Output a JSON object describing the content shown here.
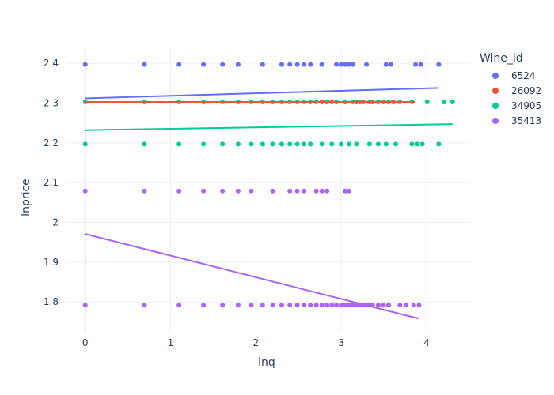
{
  "chart_data": {
    "type": "scatter",
    "xlabel": "lnq",
    "ylabel": "lnprice",
    "xlim": [
      -0.22,
      4.52
    ],
    "ylim": [
      1.725,
      2.44
    ],
    "x_ticks": [
      0,
      1,
      2,
      3,
      4
    ],
    "y_ticks": [
      1.8,
      1.9,
      2,
      2.1,
      2.2,
      2.3,
      2.4
    ],
    "grid": true,
    "legend": {
      "title": "Wine_id",
      "placement": "top-right"
    },
    "series": [
      {
        "name": "6524",
        "color": "#636efa",
        "points": [
          [
            0,
            2.397
          ],
          [
            0.693,
            2.397
          ],
          [
            1.099,
            2.397
          ],
          [
            1.386,
            2.397
          ],
          [
            1.609,
            2.397
          ],
          [
            1.792,
            2.397
          ],
          [
            2.079,
            2.397
          ],
          [
            2.303,
            2.397
          ],
          [
            2.398,
            2.397
          ],
          [
            2.485,
            2.397
          ],
          [
            2.565,
            2.397
          ],
          [
            2.639,
            2.397
          ],
          [
            2.773,
            2.397
          ],
          [
            2.944,
            2.397
          ],
          [
            3.0,
            2.397
          ],
          [
            3.045,
            2.397
          ],
          [
            3.091,
            2.397
          ],
          [
            3.135,
            2.397
          ],
          [
            3.296,
            2.397
          ],
          [
            3.526,
            2.397
          ],
          [
            3.584,
            2.397
          ],
          [
            3.871,
            2.397
          ],
          [
            3.932,
            2.397
          ],
          [
            4.143,
            2.397
          ]
        ],
        "trend": [
          [
            0,
            2.312
          ],
          [
            4.143,
            2.338
          ]
        ]
      },
      {
        "name": "26092",
        "color": "#ef553b",
        "points": [
          [
            2.773,
            2.303
          ],
          [
            2.833,
            2.303
          ],
          [
            2.89,
            2.303
          ],
          [
            3.045,
            2.303
          ],
          [
            3.178,
            2.303
          ],
          [
            3.258,
            2.303
          ],
          [
            3.367,
            2.303
          ],
          [
            3.497,
            2.303
          ],
          [
            3.611,
            2.303
          ]
        ],
        "trend": [
          [
            0,
            2.303
          ],
          [
            3.871,
            2.303
          ]
        ]
      },
      {
        "name": "34905",
        "color": "#00cc96",
        "points": [
          [
            0,
            2.303
          ],
          [
            0.693,
            2.303
          ],
          [
            1.099,
            2.303
          ],
          [
            1.386,
            2.303
          ],
          [
            1.609,
            2.303
          ],
          [
            1.792,
            2.303
          ],
          [
            1.946,
            2.303
          ],
          [
            2.079,
            2.303
          ],
          [
            2.197,
            2.303
          ],
          [
            2.303,
            2.303
          ],
          [
            2.398,
            2.303
          ],
          [
            2.485,
            2.303
          ],
          [
            2.565,
            2.303
          ],
          [
            2.639,
            2.303
          ],
          [
            2.708,
            2.303
          ],
          [
            2.833,
            2.303
          ],
          [
            2.944,
            2.303
          ],
          [
            3.045,
            2.303
          ],
          [
            3.135,
            2.303
          ],
          [
            3.219,
            2.303
          ],
          [
            3.332,
            2.303
          ],
          [
            3.434,
            2.303
          ],
          [
            3.555,
            2.303
          ],
          [
            3.689,
            2.303
          ],
          [
            3.829,
            2.303
          ],
          [
            4.007,
            2.303
          ],
          [
            4.205,
            2.303
          ],
          [
            4.304,
            2.303
          ],
          [
            0,
            2.197
          ],
          [
            0.693,
            2.197
          ],
          [
            1.099,
            2.197
          ],
          [
            1.386,
            2.197
          ],
          [
            1.609,
            2.197
          ],
          [
            1.792,
            2.197
          ],
          [
            1.946,
            2.197
          ],
          [
            2.079,
            2.197
          ],
          [
            2.197,
            2.197
          ],
          [
            2.303,
            2.197
          ],
          [
            2.398,
            2.197
          ],
          [
            2.485,
            2.197
          ],
          [
            2.565,
            2.197
          ],
          [
            2.639,
            2.197
          ],
          [
            2.773,
            2.197
          ],
          [
            2.89,
            2.197
          ],
          [
            3.0,
            2.197
          ],
          [
            3.091,
            2.197
          ],
          [
            3.178,
            2.197
          ],
          [
            3.332,
            2.197
          ],
          [
            3.434,
            2.197
          ],
          [
            3.526,
            2.197
          ],
          [
            3.638,
            2.197
          ],
          [
            3.829,
            2.197
          ],
          [
            3.892,
            2.197
          ],
          [
            3.951,
            2.197
          ],
          [
            4.143,
            2.197
          ]
        ],
        "trend": [
          [
            0,
            2.232
          ],
          [
            4.304,
            2.247
          ]
        ]
      },
      {
        "name": "35413",
        "color": "#ab63fa",
        "points": [
          [
            0,
            2.079
          ],
          [
            0.693,
            2.079
          ],
          [
            1.099,
            2.079
          ],
          [
            1.386,
            2.079
          ],
          [
            1.609,
            2.079
          ],
          [
            1.792,
            2.079
          ],
          [
            1.946,
            2.079
          ],
          [
            2.197,
            2.079
          ],
          [
            2.398,
            2.079
          ],
          [
            2.485,
            2.079
          ],
          [
            2.565,
            2.079
          ],
          [
            2.708,
            2.079
          ],
          [
            2.773,
            2.079
          ],
          [
            2.833,
            2.079
          ],
          [
            3.045,
            2.079
          ],
          [
            3.091,
            2.079
          ],
          [
            0,
            1.792
          ],
          [
            0.693,
            1.792
          ],
          [
            1.099,
            1.792
          ],
          [
            1.386,
            1.792
          ],
          [
            1.609,
            1.792
          ],
          [
            1.792,
            1.792
          ],
          [
            1.946,
            1.792
          ],
          [
            2.079,
            1.792
          ],
          [
            2.197,
            1.792
          ],
          [
            2.303,
            1.792
          ],
          [
            2.398,
            1.792
          ],
          [
            2.485,
            1.792
          ],
          [
            2.565,
            1.792
          ],
          [
            2.639,
            1.792
          ],
          [
            2.708,
            1.792
          ],
          [
            2.773,
            1.792
          ],
          [
            2.833,
            1.792
          ],
          [
            2.89,
            1.792
          ],
          [
            2.944,
            1.792
          ],
          [
            3.0,
            1.792
          ],
          [
            3.045,
            1.792
          ],
          [
            3.091,
            1.792
          ],
          [
            3.135,
            1.792
          ],
          [
            3.178,
            1.792
          ],
          [
            3.219,
            1.792
          ],
          [
            3.258,
            1.792
          ],
          [
            3.296,
            1.792
          ],
          [
            3.332,
            1.792
          ],
          [
            3.367,
            1.792
          ],
          [
            3.434,
            1.792
          ],
          [
            3.497,
            1.792
          ],
          [
            3.555,
            1.792
          ],
          [
            3.689,
            1.792
          ],
          [
            3.761,
            1.792
          ],
          [
            3.85,
            1.792
          ],
          [
            3.912,
            1.792
          ]
        ],
        "trend": [
          [
            0,
            1.971
          ],
          [
            3.912,
            1.758
          ]
        ]
      }
    ]
  }
}
